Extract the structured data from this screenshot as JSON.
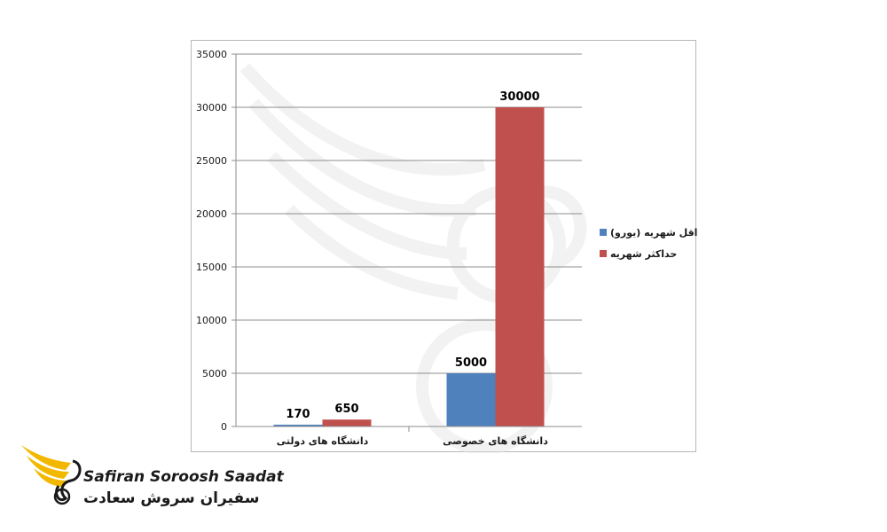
{
  "chart_data": {
    "type": "bar",
    "categories": [
      "دانشگاه های دولتی",
      "دانشگاه های خصوصی"
    ],
    "series": [
      {
        "name": "حداقل شهریه (یورو)",
        "values": [
          170,
          5000
        ],
        "color": "#4f81bd"
      },
      {
        "name": "حداکثر شهریه",
        "values": [
          650,
          30000
        ],
        "color": "#c0504d"
      }
    ],
    "y_ticks": [
      "0",
      "5000",
      "10000",
      "15000",
      "20000",
      "25000",
      "30000",
      "35000"
    ],
    "ylim": [
      0,
      35000
    ],
    "grid": true,
    "legend_position": "right",
    "data_labels": true
  },
  "brand": {
    "latin": "Safiran Soroosh Saadat",
    "persian": "سفیران سروش سعادت",
    "colors": {
      "wing": "#f2b800",
      "text": "#1a1a1a"
    },
    "icon": "winged-bird-logo"
  }
}
